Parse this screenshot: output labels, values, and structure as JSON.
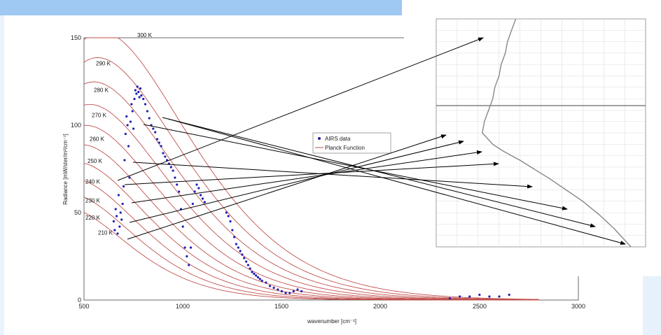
{
  "chart_data": [
    {
      "type": "scatter",
      "xlabel": "wavenumber [cm⁻¹]",
      "ylabel": "Radiance [mW/ster/m²/cm⁻¹]",
      "xlim": [
        500,
        3000
      ],
      "ylim": [
        0,
        150
      ],
      "x_ticks": [
        "500",
        "1000",
        "1500",
        "2000",
        "2500",
        "3000"
      ],
      "y_ticks": [
        "0",
        "50",
        "100",
        "150"
      ],
      "legend": {
        "position": "center-right",
        "entries": [
          "AIRS data",
          "Planck Function"
        ]
      },
      "series": [
        {
          "name": "AIRS data",
          "color": "#1f1fb4",
          "points": [
            [
              650,
              45
            ],
            [
              655,
              40
            ],
            [
              660,
              52
            ],
            [
              665,
              48
            ],
            [
              670,
              38
            ],
            [
              675,
              60
            ],
            [
              680,
              42
            ],
            [
              685,
              50
            ],
            [
              690,
              46
            ],
            [
              695,
              55
            ],
            [
              700,
              65
            ],
            [
              705,
              80
            ],
            [
              710,
              95
            ],
            [
              715,
              105
            ],
            [
              720,
              100
            ],
            [
              725,
              88
            ],
            [
              730,
              70
            ],
            [
              735,
              102
            ],
            [
              740,
              112
            ],
            [
              745,
              108
            ],
            [
              750,
              98
            ],
            [
              755,
              115
            ],
            [
              760,
              120
            ],
            [
              765,
              118
            ],
            [
              770,
              122
            ],
            [
              775,
              119
            ],
            [
              780,
              116
            ],
            [
              785,
              121
            ],
            [
              790,
              117
            ],
            [
              800,
              115
            ],
            [
              810,
              112
            ],
            [
              820,
              108
            ],
            [
              830,
              104
            ],
            [
              840,
              100
            ],
            [
              850,
              98
            ],
            [
              860,
              96
            ],
            [
              870,
              92
            ],
            [
              880,
              90
            ],
            [
              890,
              88
            ],
            [
              900,
              84
            ],
            [
              910,
              82
            ],
            [
              920,
              80
            ],
            [
              930,
              78
            ],
            [
              940,
              76
            ],
            [
              950,
              74
            ],
            [
              960,
              70
            ],
            [
              970,
              66
            ],
            [
              980,
              62
            ],
            [
              990,
              52
            ],
            [
              1000,
              42
            ],
            [
              1010,
              30
            ],
            [
              1020,
              25
            ],
            [
              1030,
              20
            ],
            [
              1040,
              30
            ],
            [
              1050,
              55
            ],
            [
              1060,
              62
            ],
            [
              1070,
              66
            ],
            [
              1080,
              64
            ],
            [
              1090,
              60
            ],
            [
              1100,
              58
            ],
            [
              1110,
              56
            ],
            [
              1220,
              50
            ],
            [
              1230,
              48
            ],
            [
              1240,
              45
            ],
            [
              1250,
              40
            ],
            [
              1260,
              36
            ],
            [
              1270,
              32
            ],
            [
              1280,
              30
            ],
            [
              1290,
              28
            ],
            [
              1300,
              26
            ],
            [
              1310,
              24
            ],
            [
              1320,
              22
            ],
            [
              1330,
              20
            ],
            [
              1340,
              18
            ],
            [
              1350,
              16
            ],
            [
              1360,
              15
            ],
            [
              1370,
              14
            ],
            [
              1380,
              13
            ],
            [
              1390,
              12
            ],
            [
              1400,
              11
            ],
            [
              1420,
              10
            ],
            [
              1440,
              8
            ],
            [
              1460,
              7
            ],
            [
              1480,
              6
            ],
            [
              1500,
              5
            ],
            [
              1520,
              4
            ],
            [
              1540,
              4
            ],
            [
              1560,
              5
            ],
            [
              1580,
              6
            ],
            [
              1600,
              5
            ],
            [
              2350,
              1
            ],
            [
              2400,
              2
            ],
            [
              2450,
              2
            ],
            [
              2500,
              3
            ],
            [
              2550,
              2
            ],
            [
              2600,
              2
            ],
            [
              2650,
              3
            ]
          ]
        },
        {
          "name": "Planck Function",
          "color": "#c0504d",
          "curves": [
            {
              "temp_label": "300 K",
              "T": 300
            },
            {
              "temp_label": "290 K",
              "T": 290
            },
            {
              "temp_label": "280 K",
              "T": 280
            },
            {
              "temp_label": "270 K",
              "T": 270
            },
            {
              "temp_label": "260 K",
              "T": 260
            },
            {
              "temp_label": "250 K",
              "T": 250
            },
            {
              "temp_label": "240 K",
              "T": 240
            },
            {
              "temp_label": "230 K",
              "T": 230
            },
            {
              "temp_label": "220 K",
              "T": 220
            },
            {
              "temp_label": "210 K",
              "T": 210
            }
          ]
        }
      ]
    },
    {
      "type": "line",
      "series": [
        {
          "color": "#888888",
          "profile": [
            [
              0.38,
              0.0
            ],
            [
              0.36,
              0.05
            ],
            [
              0.34,
              0.1
            ],
            [
              0.33,
              0.15
            ],
            [
              0.31,
              0.2
            ],
            [
              0.3,
              0.25
            ],
            [
              0.28,
              0.3
            ],
            [
              0.27,
              0.35
            ],
            [
              0.25,
              0.4
            ],
            [
              0.23,
              0.45
            ],
            [
              0.22,
              0.5
            ],
            [
              0.24,
              0.52
            ],
            [
              0.27,
              0.55
            ],
            [
              0.32,
              0.58
            ],
            [
              0.4,
              0.62
            ],
            [
              0.47,
              0.66
            ],
            [
              0.54,
              0.7
            ],
            [
              0.62,
              0.75
            ],
            [
              0.7,
              0.8
            ],
            [
              0.78,
              0.86
            ],
            [
              0.85,
              0.92
            ],
            [
              0.9,
              0.97
            ],
            [
              0.93,
              1.0
            ]
          ]
        }
      ]
    }
  ]
}
